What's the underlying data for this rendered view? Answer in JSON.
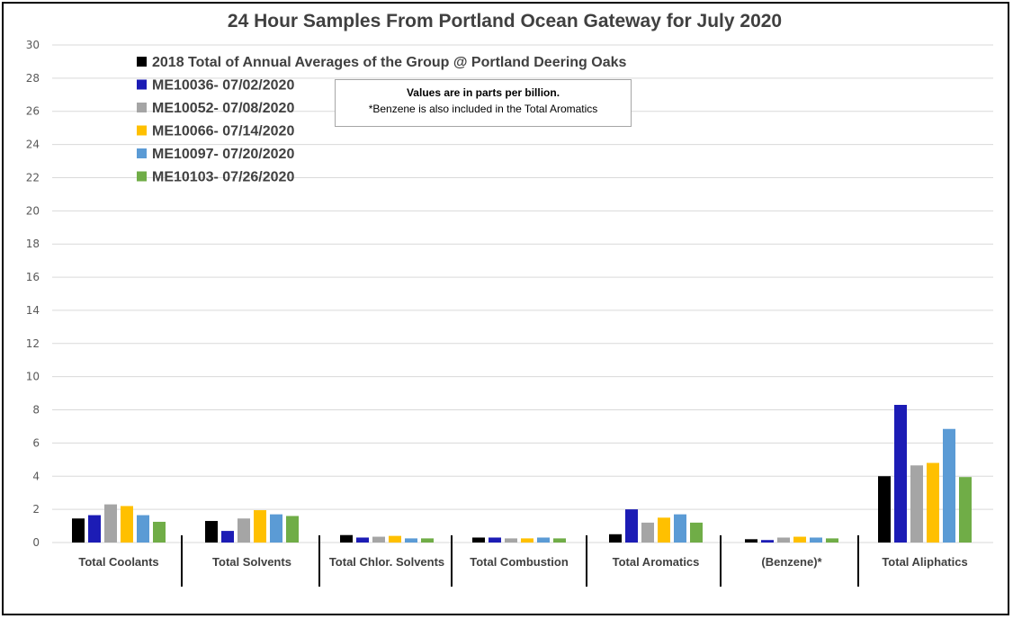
{
  "chart_data": {
    "type": "bar",
    "title": "24 Hour Samples From Portland Ocean Gateway for July 2020",
    "xlabel": "",
    "ylabel": "",
    "ylim": [
      0,
      30
    ],
    "yticks": [
      0,
      2,
      4,
      6,
      8,
      10,
      12,
      14,
      16,
      18,
      20,
      22,
      24,
      26,
      28,
      30
    ],
    "grid": true,
    "legend_position": "top-left",
    "categories": [
      "Total Coolants",
      "Total Solvents",
      "Total Chlor. Solvents",
      "Total Combustion",
      "Total Aromatics",
      "(Benzene)*",
      "Total Aliphatics"
    ],
    "series": [
      {
        "name": "2018 Total of Annual Averages of the Group @ Portland Deering Oaks",
        "color": "#000000",
        "values": [
          1.45,
          1.3,
          0.45,
          0.3,
          0.5,
          0.2,
          4.0
        ]
      },
      {
        "name": "ME10036- 07/02/2020",
        "color": "#1c1cb5",
        "values": [
          1.65,
          0.7,
          0.3,
          0.3,
          2.0,
          0.15,
          8.3
        ]
      },
      {
        "name": "ME10052- 07/08/2020",
        "color": "#a5a5a5",
        "values": [
          2.3,
          1.45,
          0.35,
          0.25,
          1.2,
          0.3,
          4.65
        ]
      },
      {
        "name": "ME10066- 07/14/2020",
        "color": "#ffc000",
        "values": [
          2.2,
          1.95,
          0.4,
          0.25,
          1.5,
          0.35,
          4.8
        ]
      },
      {
        "name": "ME10097- 07/20/2020",
        "color": "#5b9bd5",
        "values": [
          1.65,
          1.7,
          0.25,
          0.3,
          1.7,
          0.3,
          6.85
        ]
      },
      {
        "name": "ME10103- 07/26/2020",
        "color": "#70ad47",
        "values": [
          1.25,
          1.6,
          0.25,
          0.25,
          1.2,
          0.25,
          3.95
        ]
      }
    ],
    "annotation": {
      "line1": "Values are in parts per billion.",
      "line2": "*Benzene is also included in the Total Aromatics"
    }
  }
}
